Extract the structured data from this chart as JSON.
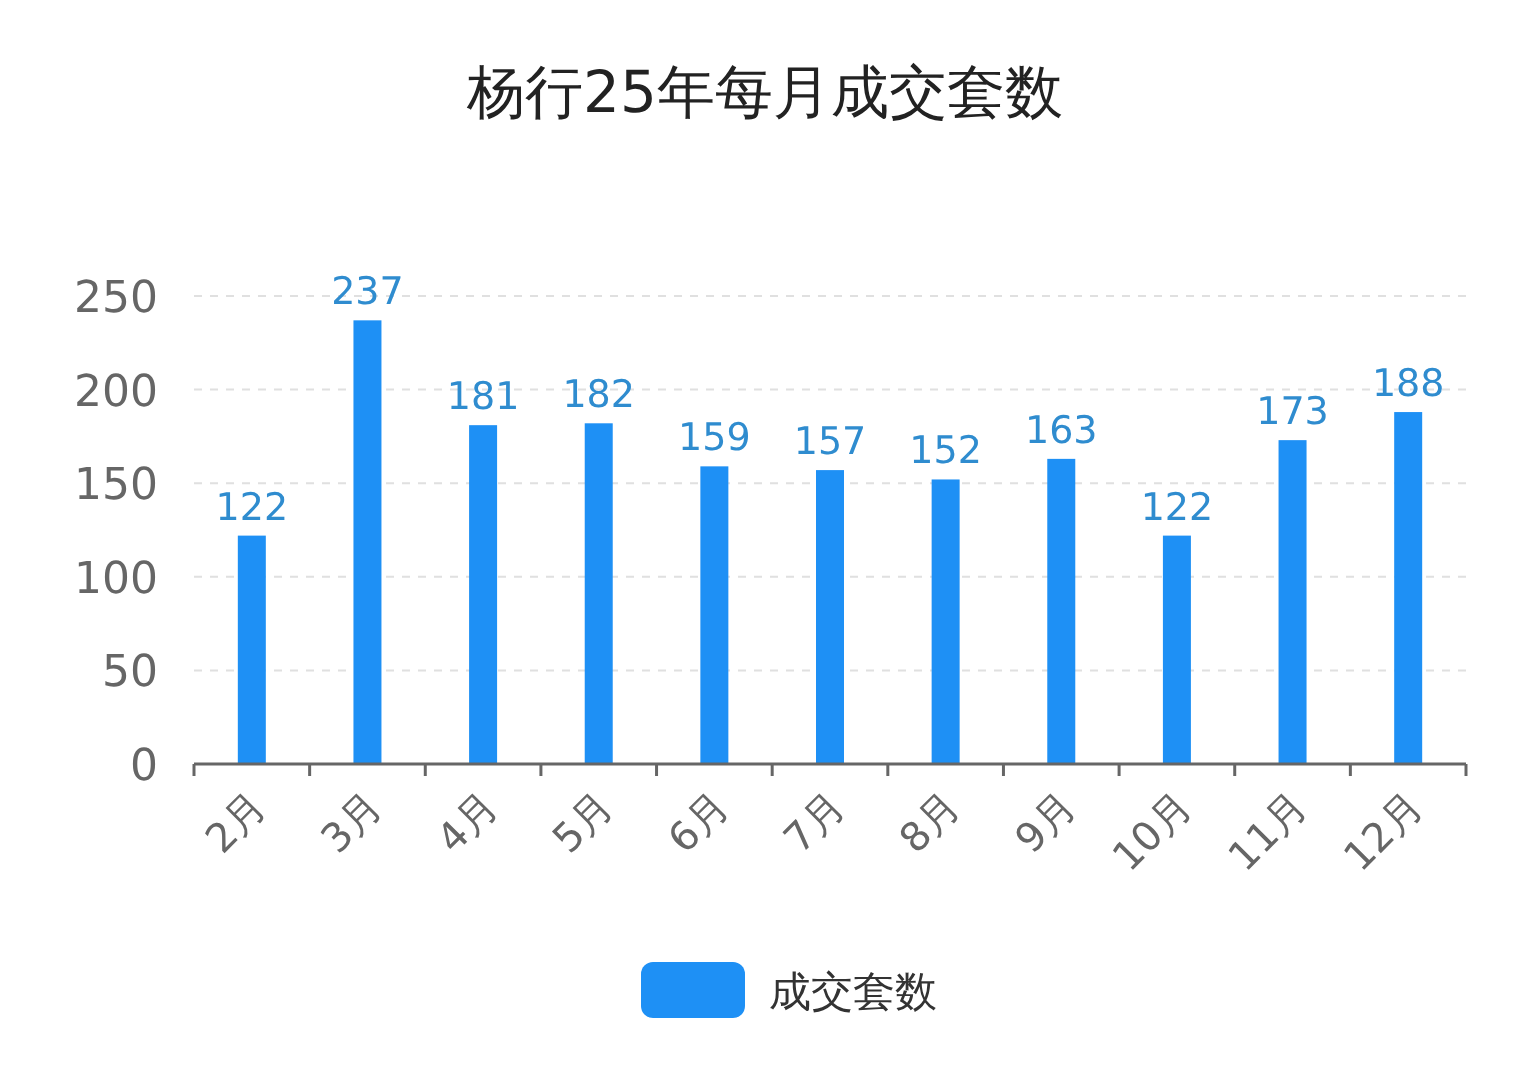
{
  "chart_data": {
    "type": "bar",
    "title": "杨行25年每月成交套数",
    "categories": [
      "2月",
      "3月",
      "4月",
      "5月",
      "6月",
      "7月",
      "8月",
      "9月",
      "10月",
      "11月",
      "12月"
    ],
    "series": [
      {
        "name": "成交套数",
        "color": "#1e90f5",
        "values": [
          122,
          237,
          181,
          182,
          159,
          157,
          152,
          163,
          122,
          173,
          188
        ]
      }
    ],
    "ylim": [
      0,
      250
    ],
    "yticks": [
      0,
      50,
      100,
      150,
      200,
      250
    ],
    "grid": "y",
    "legend": "bottom",
    "data_labels": true
  }
}
